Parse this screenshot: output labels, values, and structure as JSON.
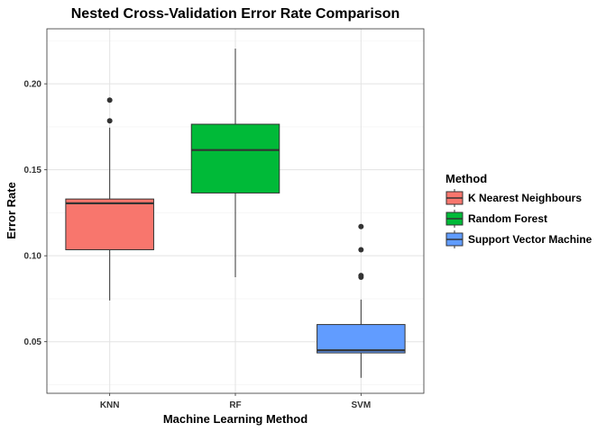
{
  "chart_data": {
    "type": "box",
    "title": "Nested Cross-Validation Error Rate Comparison",
    "xlabel": "Machine Learning Method",
    "ylabel": "Error Rate",
    "ylim": [
      0.02,
      0.232
    ],
    "yticks": [
      0.05,
      0.1,
      0.15,
      0.2
    ],
    "ytick_labels": [
      "0.05",
      "0.10",
      "0.15",
      "0.20"
    ],
    "grid": true,
    "legend": {
      "title": "Method",
      "placement": "right"
    },
    "categories": [
      "KNN",
      "RF",
      "SVM"
    ],
    "series": [
      {
        "name": "K Nearest Neighbours",
        "category": "KNN",
        "color": "#F8766D",
        "whisker_low": 0.074,
        "q1": 0.1035,
        "median": 0.1305,
        "q3": 0.133,
        "whisker_high": 0.1745,
        "outliers": [
          0.1785,
          0.1905
        ]
      },
      {
        "name": "Random Forest",
        "category": "RF",
        "color": "#00BA38",
        "whisker_low": 0.0875,
        "q1": 0.1365,
        "median": 0.1615,
        "q3": 0.1765,
        "whisker_high": 0.2205,
        "outliers": []
      },
      {
        "name": "Support Vector Machine",
        "category": "SVM",
        "color": "#619CFF",
        "whisker_low": 0.029,
        "q1": 0.0435,
        "median": 0.045,
        "q3": 0.06,
        "whisker_high": 0.0745,
        "outliers": [
          0.0875,
          0.0885,
          0.1035,
          0.117
        ]
      }
    ]
  }
}
